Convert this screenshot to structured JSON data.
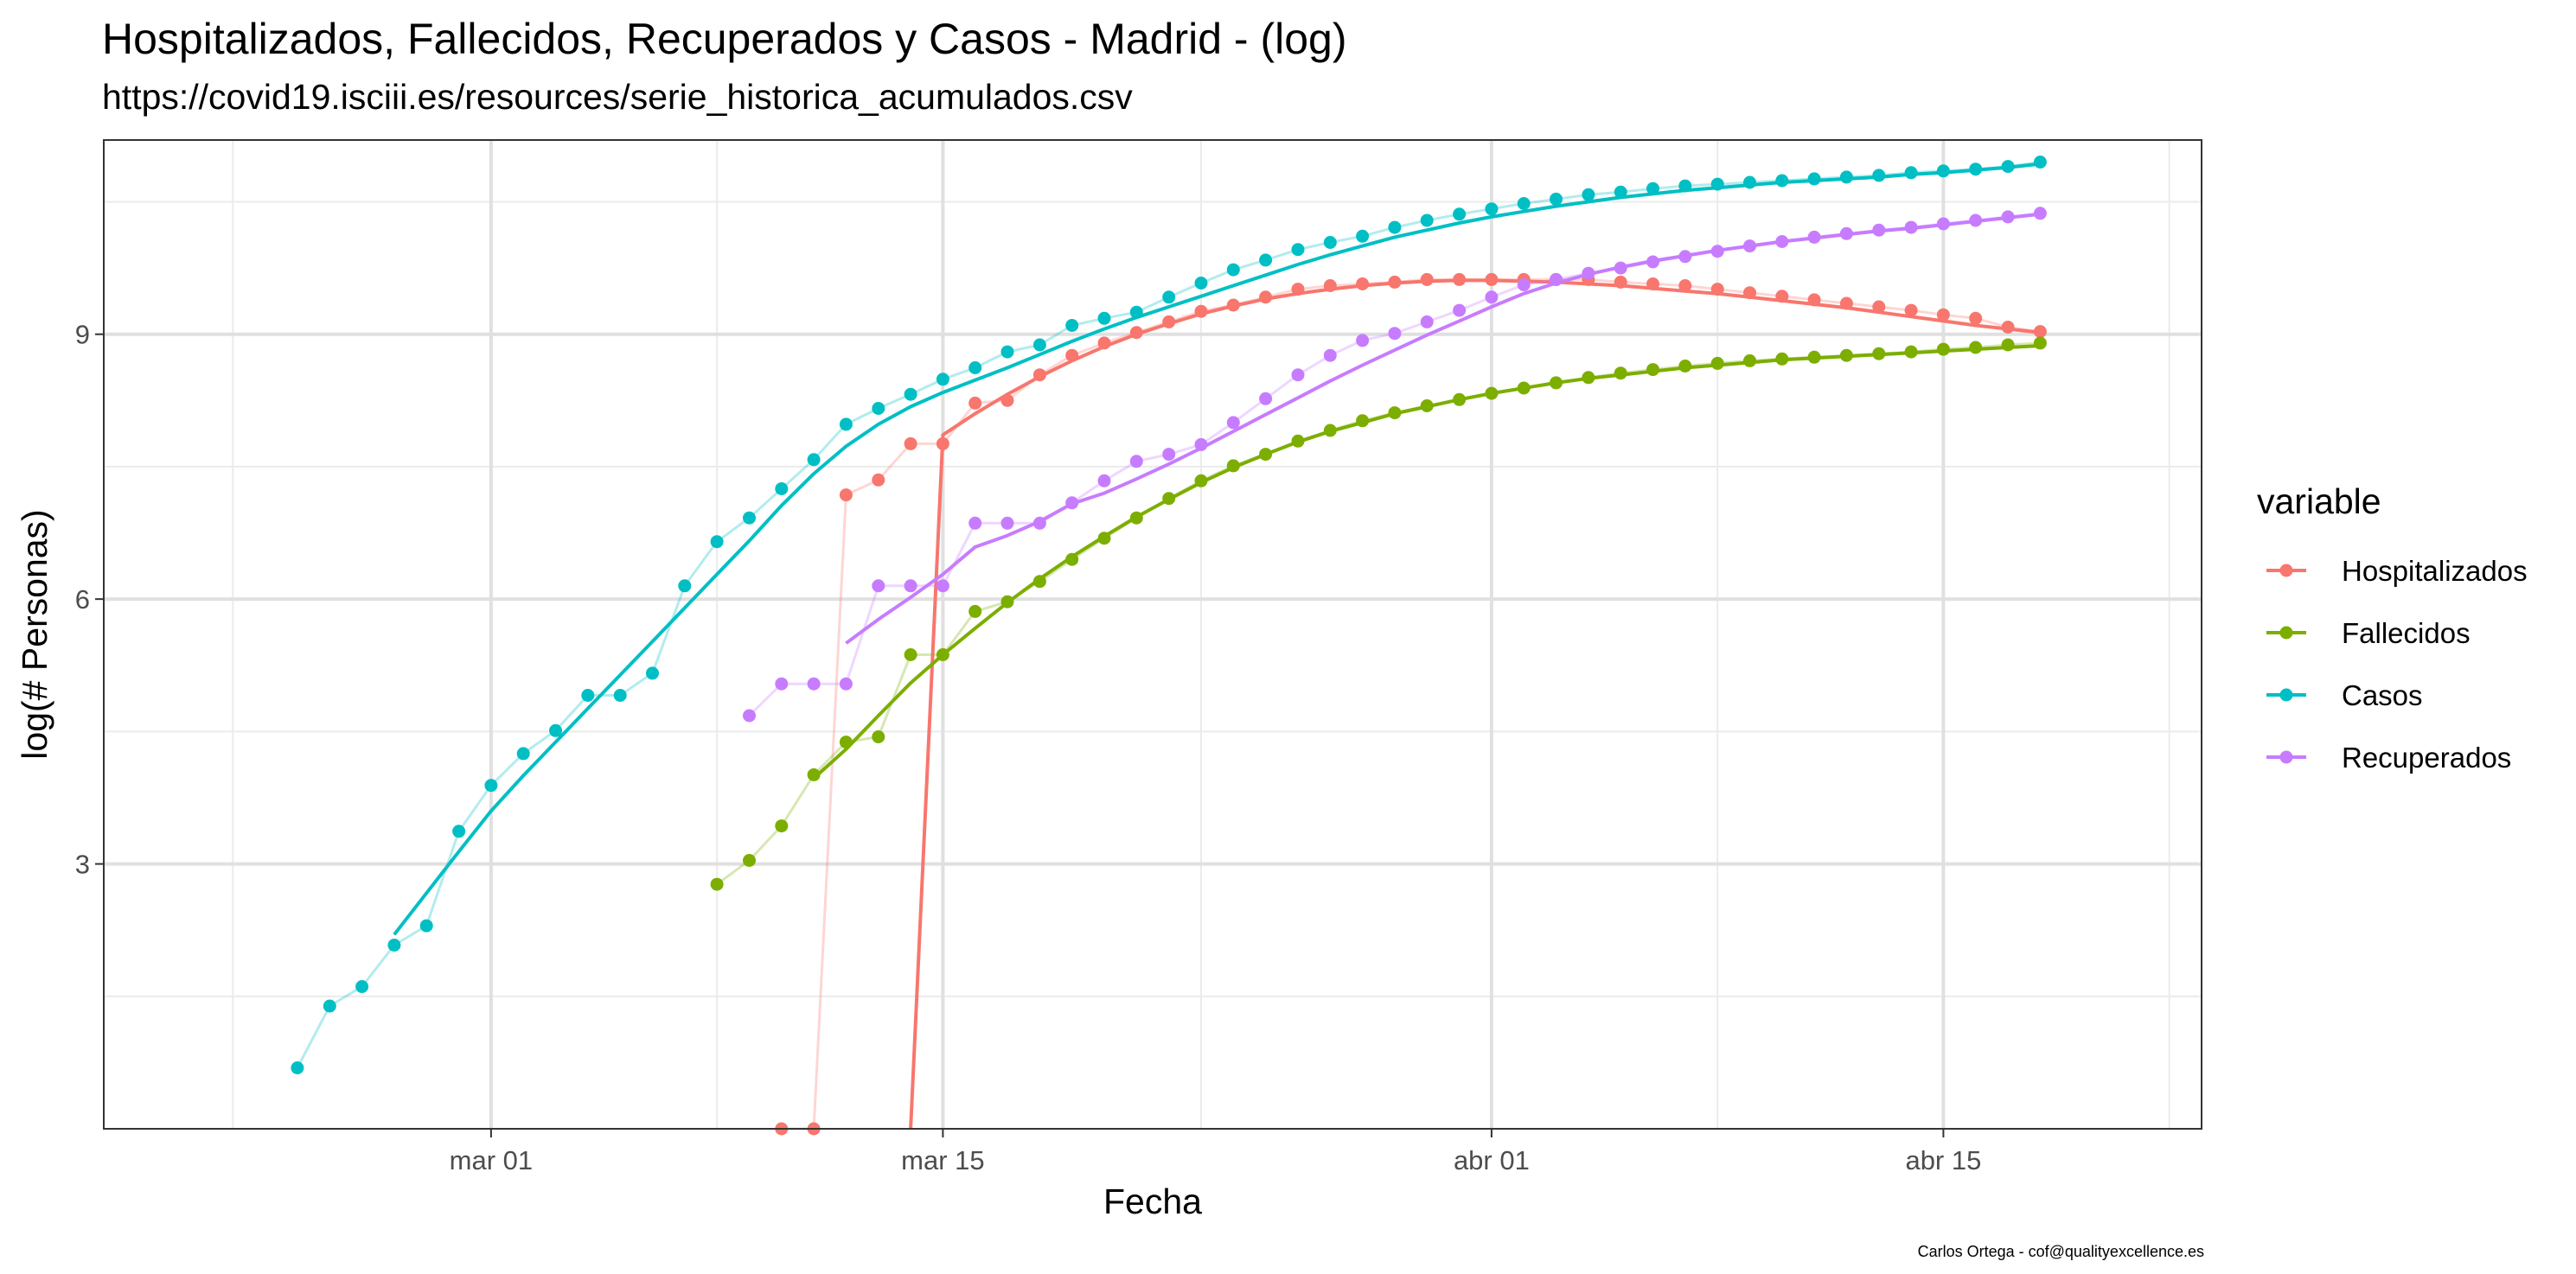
{
  "page": {
    "title": "Hospitalizados, Fallecidos, Recuperados y Casos - Madrid - (log)",
    "subtitle": "https://covid19.isciii.es/resources/serie_historica_acumulados.csv",
    "caption": "Carlos Ortega - cof@qualityexcellence.es"
  },
  "chart_data": {
    "type": "line",
    "title": "Hospitalizados, Fallecidos, Recuperados y Casos - Madrid - (log)",
    "subtitle": "https://covid19.isciii.es/resources/serie_historica_acumulados.csv",
    "xlabel": "Fecha",
    "ylabel": "log(# Personas)",
    "x_domain": [
      "2020-02-18",
      "2020-04-23"
    ],
    "ylim": [
      0,
      11.2
    ],
    "x_ticks": [
      {
        "date": "2020-03-01",
        "label": "mar 01"
      },
      {
        "date": "2020-03-15",
        "label": "mar 15"
      },
      {
        "date": "2020-04-01",
        "label": "abr 01"
      },
      {
        "date": "2020-04-15",
        "label": "abr 15"
      }
    ],
    "x_minor_ticks": [
      "2020-02-22",
      "2020-03-08",
      "2020-03-23",
      "2020-04-08",
      "2020-04-22"
    ],
    "y_ticks": [
      3,
      6,
      9
    ],
    "y_minor_ticks": [
      1.5,
      4.5,
      7.5,
      10.5
    ],
    "grid": true,
    "legend": {
      "title": "variable",
      "position": "right"
    },
    "series": [
      {
        "name": "Hospitalizados",
        "color": "#F8766D",
        "x": [
          "2020-03-10",
          "2020-03-11",
          "2020-03-12",
          "2020-03-13",
          "2020-03-14",
          "2020-03-15",
          "2020-03-16",
          "2020-03-17",
          "2020-03-18",
          "2020-03-19",
          "2020-03-20",
          "2020-03-21",
          "2020-03-22",
          "2020-03-23",
          "2020-03-24",
          "2020-03-25",
          "2020-03-26",
          "2020-03-27",
          "2020-03-28",
          "2020-03-29",
          "2020-03-30",
          "2020-03-31",
          "2020-04-01",
          "2020-04-02",
          "2020-04-03",
          "2020-04-04",
          "2020-04-05",
          "2020-04-06",
          "2020-04-07",
          "2020-04-08",
          "2020-04-09",
          "2020-04-10",
          "2020-04-11",
          "2020-04-12",
          "2020-04-13",
          "2020-04-14",
          "2020-04-15",
          "2020-04-16",
          "2020-04-17",
          "2020-04-18"
        ],
        "y": [
          0,
          0,
          7.18,
          7.35,
          7.76,
          7.76,
          8.22,
          8.25,
          8.54,
          8.76,
          8.9,
          9.02,
          9.14,
          9.26,
          9.33,
          9.42,
          9.51,
          9.55,
          9.57,
          9.59,
          9.62,
          9.62,
          9.62,
          9.62,
          9.62,
          9.62,
          9.59,
          9.57,
          9.55,
          9.51,
          9.47,
          9.43,
          9.39,
          9.35,
          9.31,
          9.27,
          9.22,
          9.18,
          9.08,
          9.03
        ],
        "smooth_x": [
          "2020-03-14",
          "2020-03-15",
          "2020-03-16",
          "2020-03-17",
          "2020-03-18",
          "2020-03-19",
          "2020-03-20",
          "2020-03-21",
          "2020-03-22",
          "2020-03-23",
          "2020-03-24",
          "2020-03-25",
          "2020-03-26",
          "2020-03-27",
          "2020-03-28",
          "2020-03-29",
          "2020-03-30",
          "2020-03-31",
          "2020-04-01",
          "2020-04-02",
          "2020-04-03",
          "2020-04-04",
          "2020-04-05",
          "2020-04-06",
          "2020-04-07",
          "2020-04-08",
          "2020-04-09",
          "2020-04-10",
          "2020-04-11",
          "2020-04-12",
          "2020-04-13",
          "2020-04-14",
          "2020-04-15",
          "2020-04-16",
          "2020-04-17",
          "2020-04-18"
        ],
        "smooth_y": [
          0,
          7.86,
          8.1,
          8.32,
          8.52,
          8.7,
          8.86,
          9.0,
          9.12,
          9.23,
          9.32,
          9.4,
          9.46,
          9.51,
          9.55,
          9.58,
          9.6,
          9.61,
          9.61,
          9.6,
          9.59,
          9.57,
          9.55,
          9.52,
          9.49,
          9.46,
          9.42,
          9.38,
          9.34,
          9.3,
          9.25,
          9.2,
          9.15,
          9.1,
          9.06,
          9.02
        ]
      },
      {
        "name": "Fallecidos",
        "color": "#7CAE00",
        "x": [
          "2020-03-08",
          "2020-03-09",
          "2020-03-10",
          "2020-03-11",
          "2020-03-12",
          "2020-03-13",
          "2020-03-14",
          "2020-03-15",
          "2020-03-16",
          "2020-03-17",
          "2020-03-18",
          "2020-03-19",
          "2020-03-20",
          "2020-03-21",
          "2020-03-22",
          "2020-03-23",
          "2020-03-24",
          "2020-03-25",
          "2020-03-26",
          "2020-03-27",
          "2020-03-28",
          "2020-03-29",
          "2020-03-30",
          "2020-03-31",
          "2020-04-01",
          "2020-04-02",
          "2020-04-03",
          "2020-04-04",
          "2020-04-05",
          "2020-04-06",
          "2020-04-07",
          "2020-04-08",
          "2020-04-09",
          "2020-04-10",
          "2020-04-11",
          "2020-04-12",
          "2020-04-13",
          "2020-04-14",
          "2020-04-15",
          "2020-04-16",
          "2020-04-17",
          "2020-04-18"
        ],
        "y": [
          2.77,
          3.04,
          3.43,
          4.01,
          4.38,
          4.44,
          5.37,
          5.37,
          5.86,
          5.97,
          6.2,
          6.45,
          6.69,
          6.92,
          7.14,
          7.34,
          7.51,
          7.64,
          7.79,
          7.91,
          8.02,
          8.11,
          8.19,
          8.26,
          8.33,
          8.39,
          8.45,
          8.51,
          8.56,
          8.6,
          8.64,
          8.67,
          8.7,
          8.72,
          8.74,
          8.76,
          8.78,
          8.8,
          8.83,
          8.85,
          8.88,
          8.9
        ],
        "smooth_x": [
          "2020-03-11",
          "2020-03-12",
          "2020-03-13",
          "2020-03-14",
          "2020-03-15",
          "2020-03-16",
          "2020-03-17",
          "2020-03-18",
          "2020-03-19",
          "2020-03-20",
          "2020-03-21",
          "2020-03-22",
          "2020-03-23",
          "2020-03-24",
          "2020-03-25",
          "2020-03-26",
          "2020-03-27",
          "2020-03-28",
          "2020-03-29",
          "2020-03-30",
          "2020-03-31",
          "2020-04-01",
          "2020-04-02",
          "2020-04-03",
          "2020-04-04",
          "2020-04-05",
          "2020-04-06",
          "2020-04-07",
          "2020-04-08",
          "2020-04-09",
          "2020-04-10",
          "2020-04-11",
          "2020-04-12",
          "2020-04-13",
          "2020-04-14",
          "2020-04-15",
          "2020-04-16",
          "2020-04-17",
          "2020-04-18"
        ],
        "smooth_y": [
          3.97,
          4.3,
          4.68,
          5.05,
          5.37,
          5.67,
          5.96,
          6.23,
          6.48,
          6.71,
          6.93,
          7.13,
          7.32,
          7.49,
          7.64,
          7.78,
          7.9,
          8.0,
          8.1,
          8.18,
          8.26,
          8.33,
          8.39,
          8.45,
          8.5,
          8.54,
          8.58,
          8.62,
          8.65,
          8.68,
          8.71,
          8.73,
          8.75,
          8.77,
          8.79,
          8.81,
          8.83,
          8.85,
          8.87
        ]
      },
      {
        "name": "Casos",
        "color": "#00BFC4",
        "x": [
          "2020-02-24",
          "2020-02-25",
          "2020-02-26",
          "2020-02-27",
          "2020-02-28",
          "2020-02-29",
          "2020-03-01",
          "2020-03-02",
          "2020-03-03",
          "2020-03-04",
          "2020-03-05",
          "2020-03-06",
          "2020-03-07",
          "2020-03-08",
          "2020-03-09",
          "2020-03-10",
          "2020-03-11",
          "2020-03-12",
          "2020-03-13",
          "2020-03-14",
          "2020-03-15",
          "2020-03-16",
          "2020-03-17",
          "2020-03-18",
          "2020-03-19",
          "2020-03-20",
          "2020-03-21",
          "2020-03-22",
          "2020-03-23",
          "2020-03-24",
          "2020-03-25",
          "2020-03-26",
          "2020-03-27",
          "2020-03-28",
          "2020-03-29",
          "2020-03-30",
          "2020-03-31",
          "2020-04-01",
          "2020-04-02",
          "2020-04-03",
          "2020-04-04",
          "2020-04-05",
          "2020-04-06",
          "2020-04-07",
          "2020-04-08",
          "2020-04-09",
          "2020-04-10",
          "2020-04-11",
          "2020-04-12",
          "2020-04-13",
          "2020-04-14",
          "2020-04-15",
          "2020-04-16",
          "2020-04-17",
          "2020-04-18"
        ],
        "y": [
          0.69,
          1.39,
          1.61,
          2.08,
          2.3,
          3.37,
          3.89,
          4.25,
          4.51,
          4.91,
          4.91,
          5.16,
          6.15,
          6.65,
          6.92,
          7.25,
          7.58,
          7.98,
          8.16,
          8.32,
          8.49,
          8.62,
          8.8,
          8.88,
          9.1,
          9.18,
          9.25,
          9.42,
          9.58,
          9.73,
          9.84,
          9.96,
          10.04,
          10.11,
          10.21,
          10.29,
          10.36,
          10.42,
          10.48,
          10.53,
          10.58,
          10.61,
          10.65,
          10.68,
          10.7,
          10.72,
          10.74,
          10.76,
          10.78,
          10.8,
          10.83,
          10.85,
          10.87,
          10.9,
          10.95
        ],
        "smooth_x": [
          "2020-02-27",
          "2020-02-28",
          "2020-02-29",
          "2020-03-01",
          "2020-03-02",
          "2020-03-03",
          "2020-03-04",
          "2020-03-05",
          "2020-03-06",
          "2020-03-07",
          "2020-03-08",
          "2020-03-09",
          "2020-03-10",
          "2020-03-11",
          "2020-03-12",
          "2020-03-13",
          "2020-03-14",
          "2020-03-15",
          "2020-03-16",
          "2020-03-17",
          "2020-03-18",
          "2020-03-19",
          "2020-03-20",
          "2020-03-21",
          "2020-03-22",
          "2020-03-23",
          "2020-03-24",
          "2020-03-25",
          "2020-03-26",
          "2020-03-27",
          "2020-03-28",
          "2020-03-29",
          "2020-03-30",
          "2020-03-31",
          "2020-04-01",
          "2020-04-02",
          "2020-04-03",
          "2020-04-04",
          "2020-04-05",
          "2020-04-06",
          "2020-04-07",
          "2020-04-08",
          "2020-04-09",
          "2020-04-10",
          "2020-04-11",
          "2020-04-12",
          "2020-04-13",
          "2020-04-14",
          "2020-04-15",
          "2020-04-16",
          "2020-04-17",
          "2020-04-18"
        ],
        "smooth_y": [
          2.2,
          2.67,
          3.14,
          3.6,
          4.0,
          4.38,
          4.76,
          5.14,
          5.52,
          5.9,
          6.28,
          6.66,
          7.06,
          7.42,
          7.73,
          7.98,
          8.18,
          8.34,
          8.48,
          8.62,
          8.77,
          8.92,
          9.06,
          9.19,
          9.31,
          9.43,
          9.55,
          9.67,
          9.79,
          9.9,
          10.0,
          10.1,
          10.18,
          10.26,
          10.33,
          10.39,
          10.45,
          10.5,
          10.55,
          10.59,
          10.63,
          10.66,
          10.69,
          10.72,
          10.74,
          10.76,
          10.78,
          10.81,
          10.83,
          10.86,
          10.89,
          10.93
        ]
      },
      {
        "name": "Recuperados",
        "color": "#C77CFF",
        "x": [
          "2020-03-09",
          "2020-03-10",
          "2020-03-11",
          "2020-03-12",
          "2020-03-13",
          "2020-03-14",
          "2020-03-15",
          "2020-03-16",
          "2020-03-17",
          "2020-03-18",
          "2020-03-19",
          "2020-03-20",
          "2020-03-21",
          "2020-03-22",
          "2020-03-23",
          "2020-03-24",
          "2020-03-25",
          "2020-03-26",
          "2020-03-27",
          "2020-03-28",
          "2020-03-29",
          "2020-03-30",
          "2020-03-31",
          "2020-04-01",
          "2020-04-02",
          "2020-04-03",
          "2020-04-04",
          "2020-04-05",
          "2020-04-06",
          "2020-04-07",
          "2020-04-08",
          "2020-04-09",
          "2020-04-10",
          "2020-04-11",
          "2020-04-12",
          "2020-04-13",
          "2020-04-14",
          "2020-04-15",
          "2020-04-16",
          "2020-04-17",
          "2020-04-18"
        ],
        "y": [
          4.68,
          5.04,
          5.04,
          5.04,
          6.15,
          6.15,
          6.15,
          6.86,
          6.86,
          6.86,
          7.09,
          7.34,
          7.56,
          7.64,
          7.75,
          8.0,
          8.27,
          8.54,
          8.76,
          8.93,
          9.01,
          9.14,
          9.27,
          9.42,
          9.56,
          9.62,
          9.69,
          9.75,
          9.82,
          9.88,
          9.94,
          10.0,
          10.05,
          10.1,
          10.14,
          10.18,
          10.21,
          10.25,
          10.29,
          10.33,
          10.37
        ],
        "smooth_x": [
          "2020-03-12",
          "2020-03-13",
          "2020-03-14",
          "2020-03-15",
          "2020-03-16",
          "2020-03-17",
          "2020-03-18",
          "2020-03-19",
          "2020-03-20",
          "2020-03-21",
          "2020-03-22",
          "2020-03-23",
          "2020-03-24",
          "2020-03-25",
          "2020-03-26",
          "2020-03-27",
          "2020-03-28",
          "2020-03-29",
          "2020-03-30",
          "2020-03-31",
          "2020-04-01",
          "2020-04-02",
          "2020-04-03",
          "2020-04-04",
          "2020-04-05",
          "2020-04-06",
          "2020-04-07",
          "2020-04-08",
          "2020-04-09",
          "2020-04-10",
          "2020-04-11",
          "2020-04-12",
          "2020-04-13",
          "2020-04-14",
          "2020-04-15",
          "2020-04-16",
          "2020-04-17",
          "2020-04-18"
        ],
        "smooth_y": [
          5.5,
          5.77,
          6.02,
          6.28,
          6.59,
          6.72,
          6.88,
          7.08,
          7.2,
          7.36,
          7.53,
          7.71,
          7.9,
          8.09,
          8.28,
          8.47,
          8.65,
          8.82,
          8.99,
          9.15,
          9.31,
          9.46,
          9.58,
          9.68,
          9.76,
          9.83,
          9.89,
          9.95,
          10.0,
          10.05,
          10.09,
          10.13,
          10.17,
          10.2,
          10.24,
          10.28,
          10.32,
          10.36
        ]
      }
    ]
  }
}
